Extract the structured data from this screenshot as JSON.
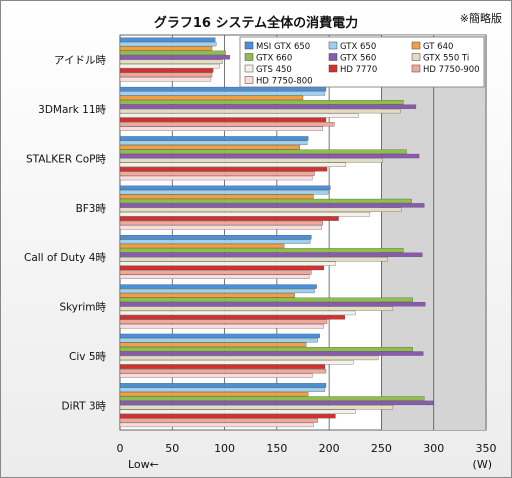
{
  "chart_data": {
    "type": "bar",
    "orientation": "horizontal",
    "title": "グラフ16 システム全体の消費電力",
    "note": "※簡略版",
    "unit_label": "(W)",
    "direction_label": "Low←",
    "xlim": [
      0,
      350
    ],
    "xticks": [
      0,
      50,
      100,
      150,
      200,
      250,
      300,
      350
    ],
    "grid": true,
    "legend_position": "top-right",
    "categories": [
      "アイドル時",
      "3DMark 11時",
      "STALKER CoP時",
      "BF3時",
      "Call of Duty 4時",
      "Skyrim時",
      "Civ 5時",
      "DiRT 3時"
    ],
    "series": [
      {
        "name": "MSI GTX 650",
        "color": "#4a90d9",
        "values": [
          91,
          197,
          180,
          201,
          183,
          188,
          191,
          197
        ]
      },
      {
        "name": "GTX 650",
        "color": "#9fd0ee",
        "values": [
          92,
          196,
          179,
          199,
          182,
          186,
          189,
          196
        ]
      },
      {
        "name": "GT 640",
        "color": "#f0a040",
        "values": [
          88,
          175,
          172,
          185,
          157,
          167,
          178,
          180
        ]
      },
      {
        "name": "GTX 660",
        "color": "#8fbf4a",
        "values": [
          101,
          271,
          274,
          279,
          271,
          280,
          280,
          291
        ]
      },
      {
        "name": "GTX 560",
        "color": "#8a5ab0",
        "values": [
          105,
          283,
          286,
          291,
          289,
          292,
          290,
          300
        ]
      },
      {
        "name": "GTX 550 Ti",
        "color": "#e2dcc2",
        "values": [
          98,
          268,
          251,
          269,
          256,
          261,
          247,
          261
        ]
      },
      {
        "name": "GTS 450",
        "color": "#f4f2e6",
        "values": [
          95,
          228,
          216,
          239,
          206,
          225,
          223,
          225
        ]
      },
      {
        "name": "HD 7770",
        "color": "#d43030",
        "values": [
          89,
          197,
          198,
          209,
          195,
          215,
          196,
          206
        ]
      },
      {
        "name": "HD 7750-900",
        "color": "#f0a898",
        "values": [
          88,
          205,
          186,
          194,
          183,
          198,
          197,
          189
        ]
      },
      {
        "name": "HD 7750-800",
        "color": "#fadcdc",
        "values": [
          87,
          194,
          184,
          193,
          181,
          195,
          184,
          185
        ]
      }
    ]
  }
}
